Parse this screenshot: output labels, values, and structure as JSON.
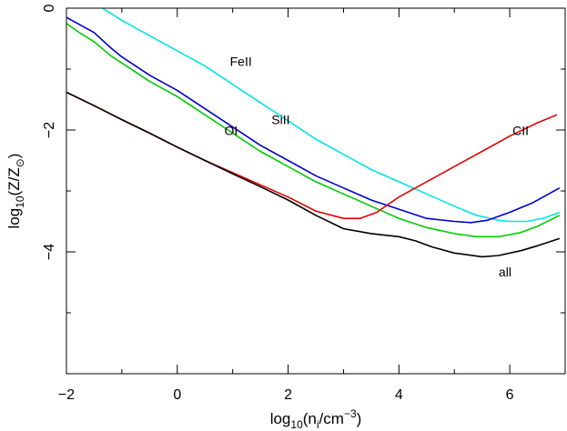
{
  "chart_data": {
    "type": "line",
    "title": "",
    "xlabel": {
      "base": "log",
      "sub": "10",
      "mid": "(n",
      "sub2": "i",
      "mid2": "/cm",
      "sup": "−3",
      "end": ")"
    },
    "ylabel": {
      "base": "log",
      "sub": "10",
      "mid": "(Z/Z",
      "sub2": "⊙",
      "end": ")"
    },
    "xlim": [
      -2,
      7
    ],
    "ylim": [
      -6,
      0
    ],
    "xticks": [
      -2,
      0,
      2,
      4,
      6
    ],
    "xtick_labels": [
      "−2",
      "0",
      "2",
      "4",
      "6"
    ],
    "yticks": [
      0,
      -2,
      -4
    ],
    "ytick_labels": [
      "0",
      "−2",
      "−4"
    ],
    "grid": false,
    "legend": "none",
    "series": [
      {
        "color": "#00e5e5",
        "x": [
          -1.35,
          -1.0,
          -0.5,
          0,
          0.5,
          1.0,
          1.5,
          2.0,
          2.5,
          3.0,
          3.5,
          4.0,
          4.5,
          5.0,
          5.4,
          5.8,
          6.0,
          6.3,
          6.6,
          6.9
        ],
        "y": [
          0.0,
          -0.2,
          -0.45,
          -0.7,
          -0.95,
          -1.25,
          -1.55,
          -1.85,
          -2.15,
          -2.4,
          -2.65,
          -2.85,
          -3.05,
          -3.25,
          -3.4,
          -3.48,
          -3.5,
          -3.5,
          -3.45,
          -3.35
        ]
      },
      {
        "color": "#0000cc",
        "x": [
          -2.0,
          -1.8,
          -1.5,
          -1.2,
          -1.0,
          -0.5,
          0,
          0.5,
          1.0,
          1.5,
          2.0,
          2.5,
          3.0,
          3.5,
          4.0,
          4.5,
          5.0,
          5.3,
          5.6,
          6.0,
          6.4,
          6.9
        ],
        "y": [
          -0.15,
          -0.25,
          -0.4,
          -0.65,
          -0.8,
          -1.1,
          -1.35,
          -1.65,
          -1.95,
          -2.25,
          -2.5,
          -2.75,
          -2.95,
          -3.15,
          -3.3,
          -3.45,
          -3.5,
          -3.52,
          -3.48,
          -3.35,
          -3.2,
          -2.95
        ]
      },
      {
        "color": "#00cc00",
        "x": [
          -2.0,
          -1.8,
          -1.5,
          -1.2,
          -1.0,
          -0.5,
          0,
          0.5,
          1.0,
          1.5,
          2.0,
          2.5,
          3.0,
          3.5,
          4.0,
          4.5,
          5.0,
          5.4,
          5.8,
          6.2,
          6.5,
          6.9
        ],
        "y": [
          -0.25,
          -0.38,
          -0.55,
          -0.78,
          -0.9,
          -1.2,
          -1.45,
          -1.75,
          -2.05,
          -2.35,
          -2.6,
          -2.85,
          -3.05,
          -3.25,
          -3.45,
          -3.6,
          -3.7,
          -3.75,
          -3.75,
          -3.68,
          -3.58,
          -3.4
        ]
      },
      {
        "color": "#e60000",
        "x": [
          -2.0,
          -1.5,
          -1.0,
          -0.5,
          0,
          0.5,
          1.0,
          1.5,
          2.0,
          2.5,
          3.0,
          3.3,
          3.6,
          4.0,
          4.5,
          5.0,
          5.5,
          6.0,
          6.5,
          6.85
        ],
        "y": [
          -1.38,
          -1.6,
          -1.83,
          -2.05,
          -2.28,
          -2.5,
          -2.7,
          -2.9,
          -3.1,
          -3.33,
          -3.45,
          -3.45,
          -3.35,
          -3.1,
          -2.85,
          -2.6,
          -2.35,
          -2.1,
          -1.88,
          -1.75
        ]
      },
      {
        "color": "#000000",
        "x": [
          -2.0,
          -1.5,
          -1.0,
          -0.5,
          0,
          0.5,
          1.0,
          1.5,
          2.0,
          2.5,
          3.0,
          3.5,
          4.0,
          4.3,
          4.6,
          5.0,
          5.5,
          5.8,
          6.2,
          6.5,
          6.9
        ],
        "y": [
          -1.38,
          -1.6,
          -1.83,
          -2.05,
          -2.28,
          -2.5,
          -2.72,
          -2.93,
          -3.15,
          -3.4,
          -3.62,
          -3.7,
          -3.75,
          -3.82,
          -3.92,
          -4.02,
          -4.08,
          -4.06,
          -3.98,
          -3.9,
          -3.78
        ]
      }
    ],
    "annotations": [
      {
        "text": "FeII",
        "x": 0.95,
        "y": -0.95
      },
      {
        "text": "SiII",
        "x": 1.7,
        "y": -1.9
      },
      {
        "text": "OI",
        "x": 0.85,
        "y": -2.08
      },
      {
        "text": "CII",
        "x": 6.05,
        "y": -2.08
      },
      {
        "text": "all",
        "x": 5.8,
        "y": -4.4
      }
    ]
  }
}
